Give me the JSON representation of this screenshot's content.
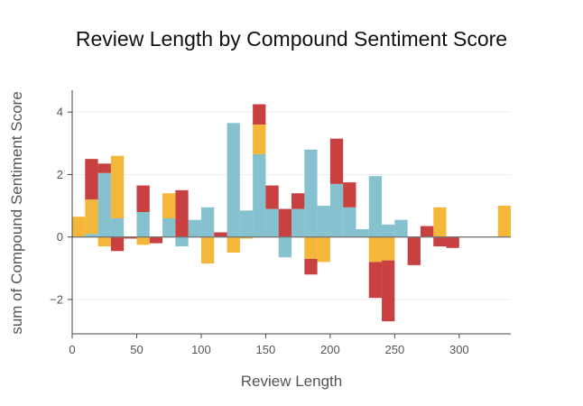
{
  "chart_data": {
    "type": "bar",
    "title": "Review Length by Compound Sentiment Score",
    "xlabel": "Review Length",
    "ylabel": "sum of Compound Sentiment Score",
    "xlim": [
      0,
      340
    ],
    "ylim": [
      -3.1,
      4.7
    ],
    "x_ticks": [
      "0",
      "50",
      "100",
      "150",
      "200",
      "250",
      "300"
    ],
    "y_ticks": [
      "−2",
      "0",
      "2",
      "4"
    ],
    "bin_width": 10,
    "grid": true,
    "legend": "none",
    "bar_mode": "relative",
    "colors": {
      "teal": "#86c1d0",
      "orange": "#f4b73a",
      "red": "#c8403f",
      "zero_line": "#777777",
      "grid": "#eeeeee",
      "axis": "#444444",
      "title": "#111111"
    },
    "series": [
      {
        "color": "#86c1d0",
        "x": [
          15,
          25,
          35,
          55,
          75,
          85,
          95,
          105,
          125,
          135,
          145,
          155,
          165,
          175,
          185,
          195,
          205,
          215,
          225,
          235,
          245,
          255
        ],
        "values": [
          0.1,
          2.05,
          0.6,
          0.8,
          0.6,
          -0.3,
          0.55,
          0.95,
          3.65,
          0.85,
          2.65,
          0.9,
          -0.65,
          0.9,
          2.8,
          1.0,
          1.7,
          0.95,
          0.25,
          1.95,
          0.4,
          0.55
        ]
      },
      {
        "color": "#f4b73a",
        "x": [
          5,
          15,
          25,
          35,
          55,
          75,
          105,
          125,
          135,
          145,
          185,
          195,
          235,
          245,
          285,
          335
        ],
        "values": [
          0.65,
          1.1,
          -0.3,
          2.0,
          -0.25,
          0.8,
          -0.85,
          -0.5,
          -0.05,
          0.95,
          -0.7,
          -0.8,
          -0.8,
          -0.75,
          0.95,
          1.0
        ]
      },
      {
        "color": "#c8403f",
        "x": [
          15,
          25,
          35,
          45,
          55,
          65,
          85,
          115,
          145,
          155,
          165,
          175,
          185,
          205,
          215,
          235,
          245,
          265,
          275,
          285,
          295
        ],
        "values": [
          1.3,
          0.3,
          -0.45,
          -0.05,
          0.85,
          -0.2,
          1.5,
          0.15,
          0.65,
          0.75,
          0.9,
          0.5,
          -0.5,
          1.45,
          0.8,
          -1.15,
          -1.95,
          -0.9,
          0.35,
          -0.3,
          -0.35
        ]
      }
    ]
  }
}
